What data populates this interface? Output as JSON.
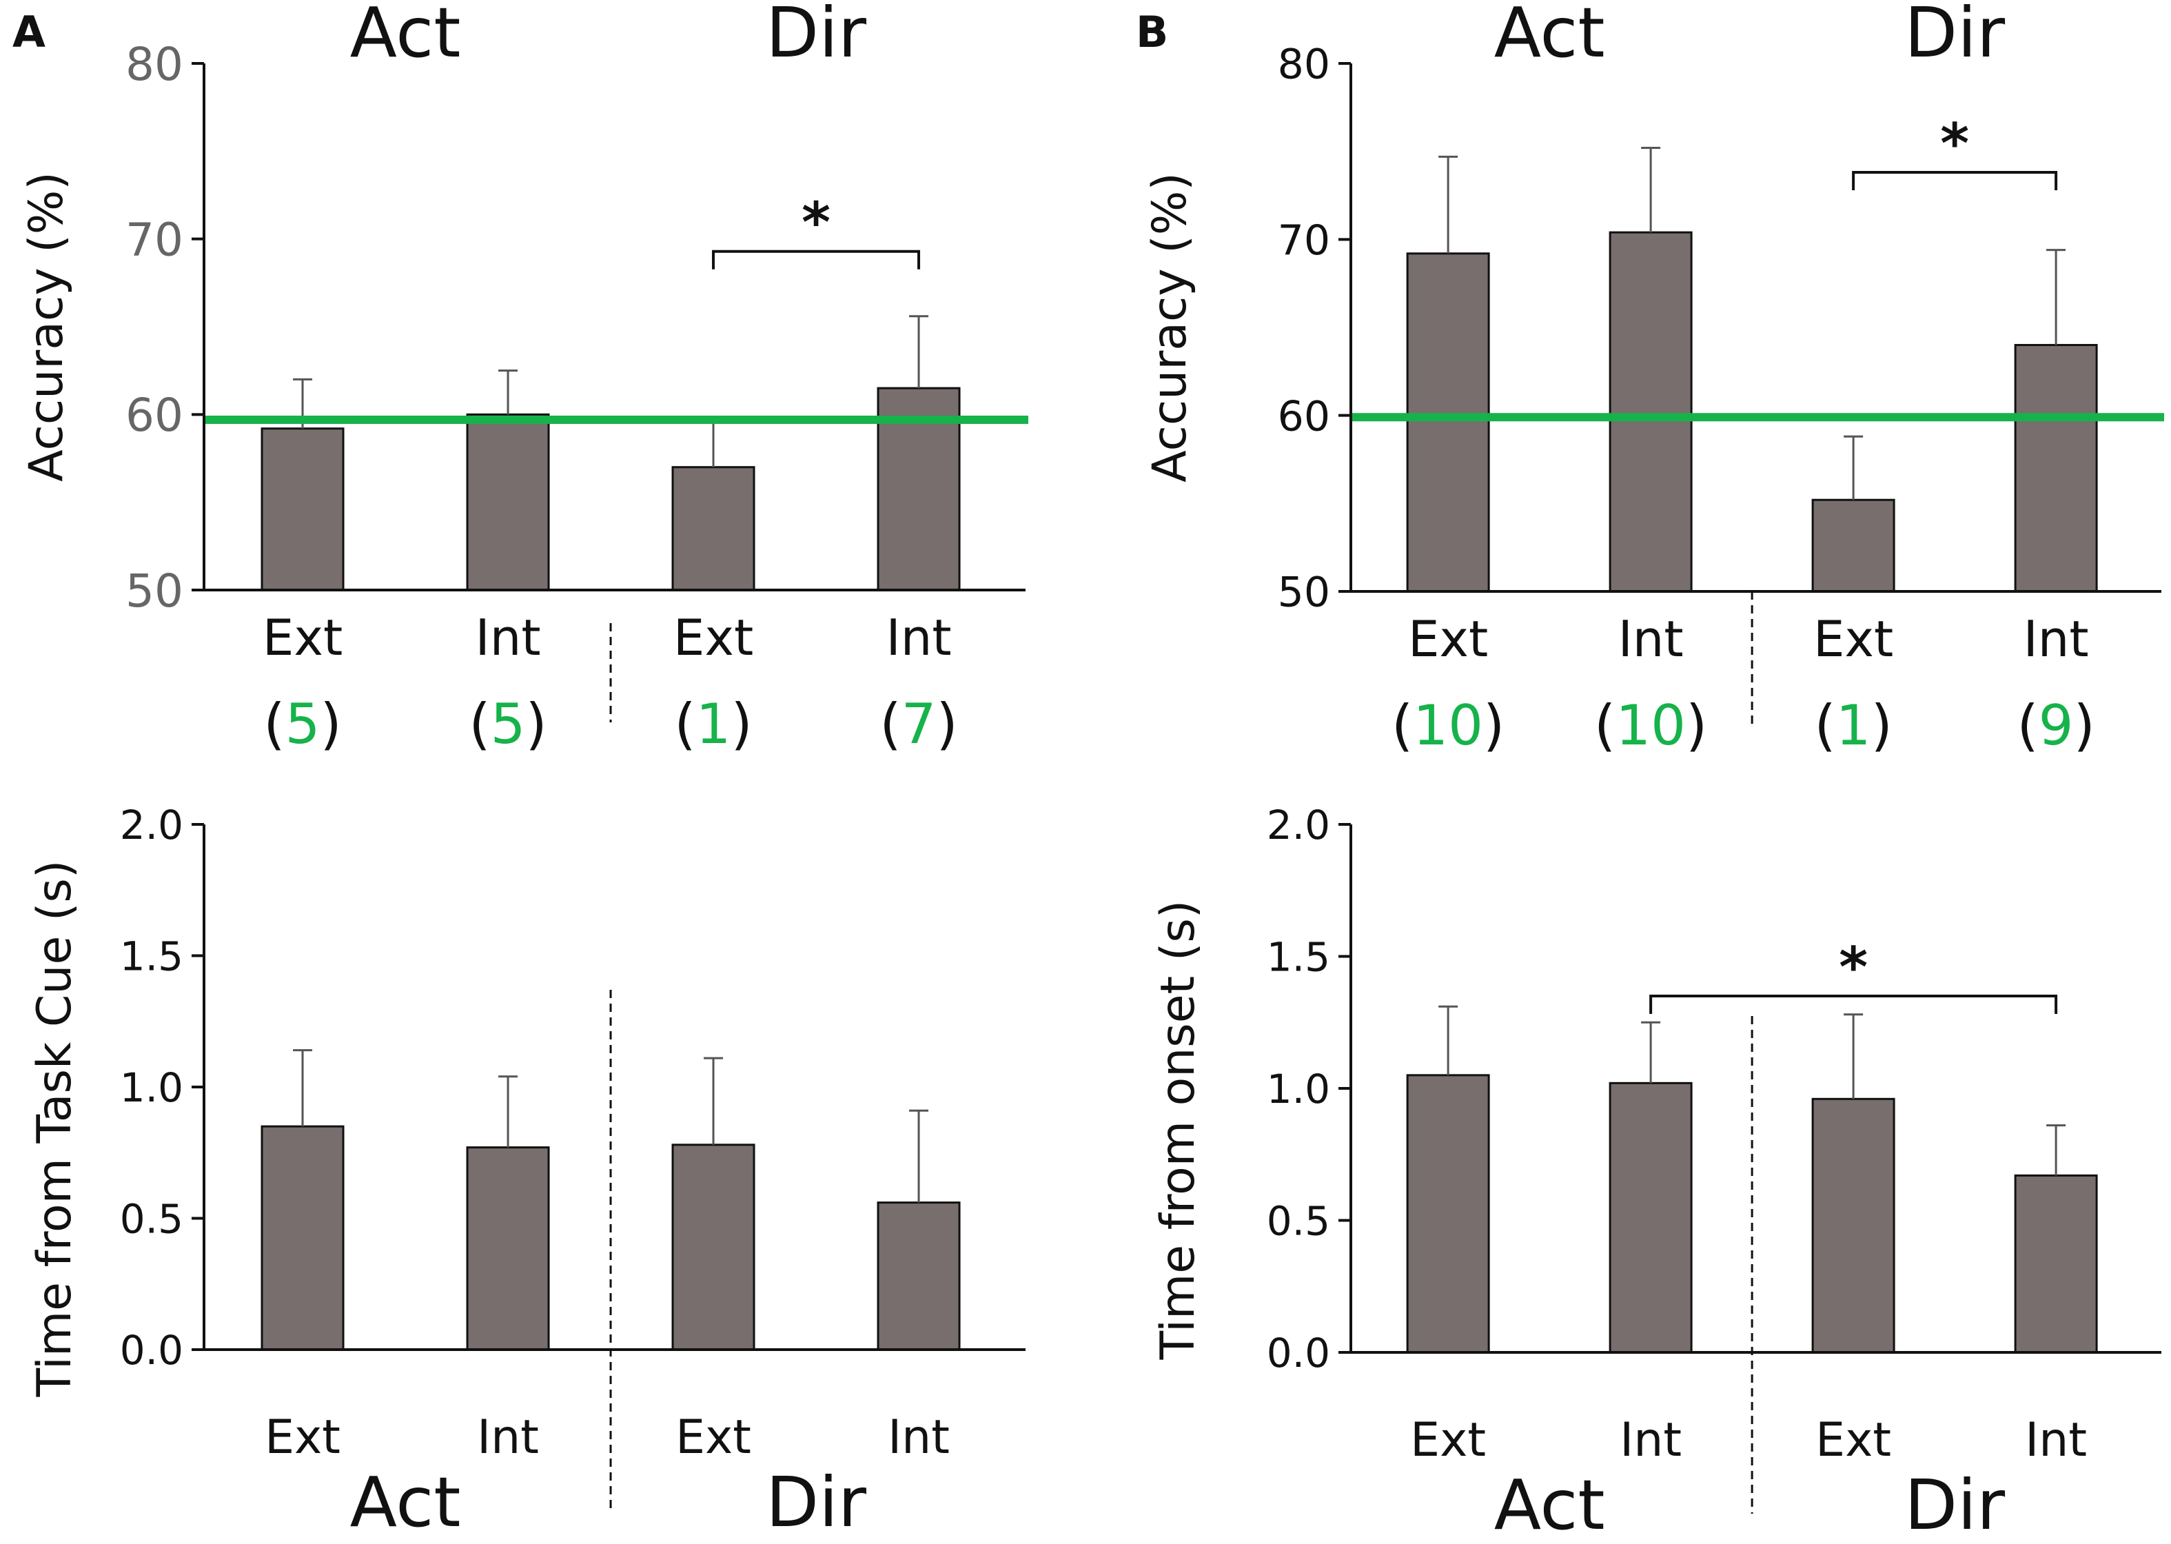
{
  "figure": {
    "colors": {
      "bar_fill": "#776e6d",
      "bar_stroke": "#111111",
      "axis": "#111111",
      "error_bar": "#555555",
      "chance_line": "#16b24a",
      "count": "#16b24a",
      "tick_gray": "#666666"
    }
  },
  "chart_data": [
    {
      "panel": "A",
      "position": "top-left",
      "type": "bar",
      "ylabel": "Accuracy  (%)",
      "ylim": [
        50,
        80
      ],
      "yticks": [
        "50",
        "60",
        "70",
        "80"
      ],
      "groups": [
        {
          "label": "Act",
          "categories": [
            "Ext",
            "Int"
          ]
        },
        {
          "label": "Dir",
          "categories": [
            "Ext",
            "Int"
          ]
        }
      ],
      "categories": [
        "Ext",
        "Int",
        "Ext",
        "Int"
      ],
      "counts": [
        "5",
        "5",
        "1",
        "7"
      ],
      "values": [
        59.2,
        60.0,
        57.0,
        61.5
      ],
      "errors": [
        2.8,
        2.5,
        2.7,
        4.1
      ],
      "reference_line": 59.7,
      "significance": [
        {
          "from": 2,
          "to": 3,
          "label": "*"
        }
      ]
    },
    {
      "panel": "B",
      "position": "top-right",
      "type": "bar",
      "ylabel": "Accuracy  (%)",
      "ylim": [
        50,
        80
      ],
      "yticks": [
        "50",
        "60",
        "70",
        "80"
      ],
      "groups": [
        {
          "label": "Act",
          "categories": [
            "Ext",
            "Int"
          ]
        },
        {
          "label": "Dir",
          "categories": [
            "Ext",
            "Int"
          ]
        }
      ],
      "categories": [
        "Ext",
        "Int",
        "Ext",
        "Int"
      ],
      "counts": [
        "10",
        "10",
        "1",
        "9"
      ],
      "values": [
        69.2,
        70.4,
        55.2,
        64.0
      ],
      "errors": [
        5.5,
        4.8,
        3.6,
        5.4
      ],
      "reference_line": 59.9,
      "significance": [
        {
          "from": 2,
          "to": 3,
          "label": "*"
        }
      ]
    },
    {
      "panel": "A",
      "position": "bottom-left",
      "type": "bar",
      "ylabel": "Time from Task Cue (s)",
      "ylim": [
        0,
        2
      ],
      "yticks": [
        "0.0",
        "0.5",
        "1.0",
        "1.5",
        "2.0"
      ],
      "groups": [
        {
          "label": "Act",
          "categories": [
            "Ext",
            "Int"
          ]
        },
        {
          "label": "Dir",
          "categories": [
            "Ext",
            "Int"
          ]
        }
      ],
      "categories": [
        "Ext",
        "Int",
        "Ext",
        "Int"
      ],
      "values": [
        0.85,
        0.77,
        0.78,
        0.56
      ],
      "errors": [
        0.29,
        0.27,
        0.33,
        0.35
      ],
      "significance": []
    },
    {
      "panel": "B",
      "position": "bottom-right",
      "type": "bar",
      "ylabel": "Time from onset (s)",
      "ylim": [
        0,
        2
      ],
      "yticks": [
        "0.0",
        "0.5",
        "1.0",
        "1.5",
        "2.0"
      ],
      "groups": [
        {
          "label": "Act",
          "categories": [
            "Ext",
            "Int"
          ]
        },
        {
          "label": "Dir",
          "categories": [
            "Ext",
            "Int"
          ]
        }
      ],
      "categories": [
        "Ext",
        "Int",
        "Ext",
        "Int"
      ],
      "values": [
        1.05,
        1.02,
        0.96,
        0.67
      ],
      "errors": [
        0.26,
        0.23,
        0.32,
        0.19
      ],
      "significance": [
        {
          "from": 1,
          "to": 3,
          "label": "*"
        }
      ]
    }
  ]
}
